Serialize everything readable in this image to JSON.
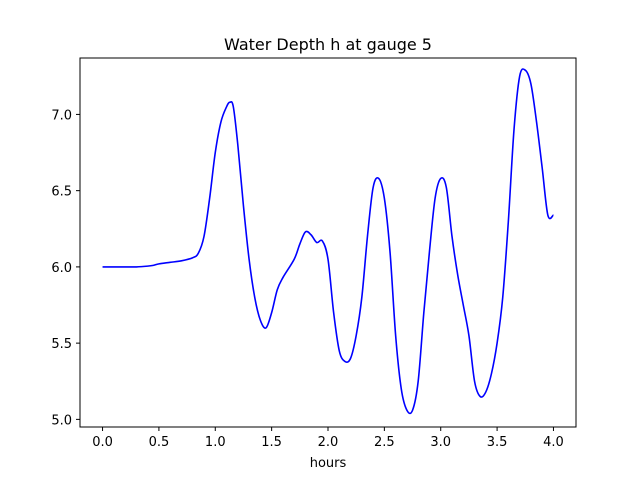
{
  "chart_data": {
    "type": "line",
    "title": "Water Depth h at gauge 5",
    "xlabel": "hours",
    "ylabel": "",
    "xlim": [
      -0.2,
      4.2
    ],
    "ylim": [
      4.95,
      7.37
    ],
    "xticks": [
      0.0,
      0.5,
      1.0,
      1.5,
      2.0,
      2.5,
      3.0,
      3.5,
      4.0
    ],
    "xtick_labels": [
      "0.0",
      "0.5",
      "1.0",
      "1.5",
      "2.0",
      "2.5",
      "3.0",
      "3.5",
      "4.0"
    ],
    "yticks": [
      5.0,
      5.5,
      6.0,
      6.5,
      7.0
    ],
    "ytick_labels": [
      "5.0",
      "5.5",
      "6.0",
      "6.5",
      "7.0"
    ],
    "grid": false,
    "series": [
      {
        "color": "#0000ff",
        "x": [
          0.0,
          0.1,
          0.2,
          0.3,
          0.4,
          0.45,
          0.5,
          0.6,
          0.7,
          0.8,
          0.85,
          0.9,
          0.95,
          1.0,
          1.05,
          1.1,
          1.13,
          1.16,
          1.2,
          1.25,
          1.3,
          1.35,
          1.4,
          1.45,
          1.5,
          1.55,
          1.6,
          1.7,
          1.75,
          1.8,
          1.85,
          1.9,
          1.95,
          2.0,
          2.05,
          2.1,
          2.15,
          2.2,
          2.25,
          2.3,
          2.35,
          2.4,
          2.45,
          2.5,
          2.55,
          2.6,
          2.65,
          2.7,
          2.75,
          2.8,
          2.85,
          2.9,
          2.95,
          3.0,
          3.05,
          3.1,
          3.15,
          3.2,
          3.25,
          3.3,
          3.35,
          3.4,
          3.45,
          3.5,
          3.55,
          3.6,
          3.65,
          3.7,
          3.75,
          3.8,
          3.85,
          3.9,
          3.95,
          4.0
        ],
        "y": [
          6.0,
          6.0,
          6.0,
          6.0,
          6.005,
          6.01,
          6.02,
          6.03,
          6.04,
          6.06,
          6.09,
          6.2,
          6.45,
          6.75,
          6.95,
          7.05,
          7.08,
          7.05,
          6.8,
          6.4,
          6.05,
          5.8,
          5.65,
          5.6,
          5.7,
          5.85,
          5.93,
          6.05,
          6.15,
          6.23,
          6.21,
          6.16,
          6.17,
          6.05,
          5.7,
          5.45,
          5.38,
          5.4,
          5.55,
          5.8,
          6.2,
          6.52,
          6.58,
          6.45,
          6.1,
          5.55,
          5.2,
          5.06,
          5.06,
          5.25,
          5.7,
          6.1,
          6.45,
          6.58,
          6.52,
          6.2,
          5.95,
          5.75,
          5.55,
          5.25,
          5.15,
          5.18,
          5.3,
          5.5,
          5.8,
          6.3,
          6.9,
          7.25,
          7.29,
          7.2,
          6.95,
          6.65,
          6.34,
          6.34
        ]
      }
    ]
  }
}
